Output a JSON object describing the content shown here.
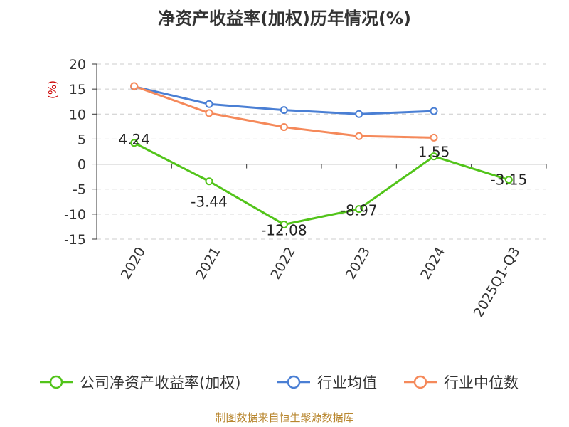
{
  "chart_data": {
    "type": "line",
    "title": "净资产收益率(加权)历年情况(%)",
    "ylabel": "(%)",
    "xlabel": "",
    "ylim": [
      -15,
      20
    ],
    "yticks": [
      20,
      15,
      10,
      5,
      0,
      -5,
      -10,
      -15
    ],
    "grid": true,
    "categories": [
      "2020",
      "2021",
      "2022",
      "2023",
      "2024",
      "2025Q1-Q3"
    ],
    "series": [
      {
        "name": "公司净资产收益率(加权)",
        "color": "#52c41a",
        "values": [
          4.24,
          -3.44,
          -12.08,
          -8.97,
          1.55,
          -3.15
        ],
        "labels": [
          "4.24",
          "-3.44",
          "-12.08",
          "-8.97",
          "1.55",
          "-3.15"
        ]
      },
      {
        "name": "行业均值",
        "color": "#4a7fd4",
        "values": [
          15.5,
          12.0,
          10.8,
          10.0,
          10.6,
          null
        ]
      },
      {
        "name": "行业中位数",
        "color": "#f5895a",
        "values": [
          15.6,
          10.2,
          7.4,
          5.6,
          5.3,
          null
        ]
      }
    ],
    "legend_position": "bottom"
  },
  "source": "制图数据来自恒生聚源数据库"
}
